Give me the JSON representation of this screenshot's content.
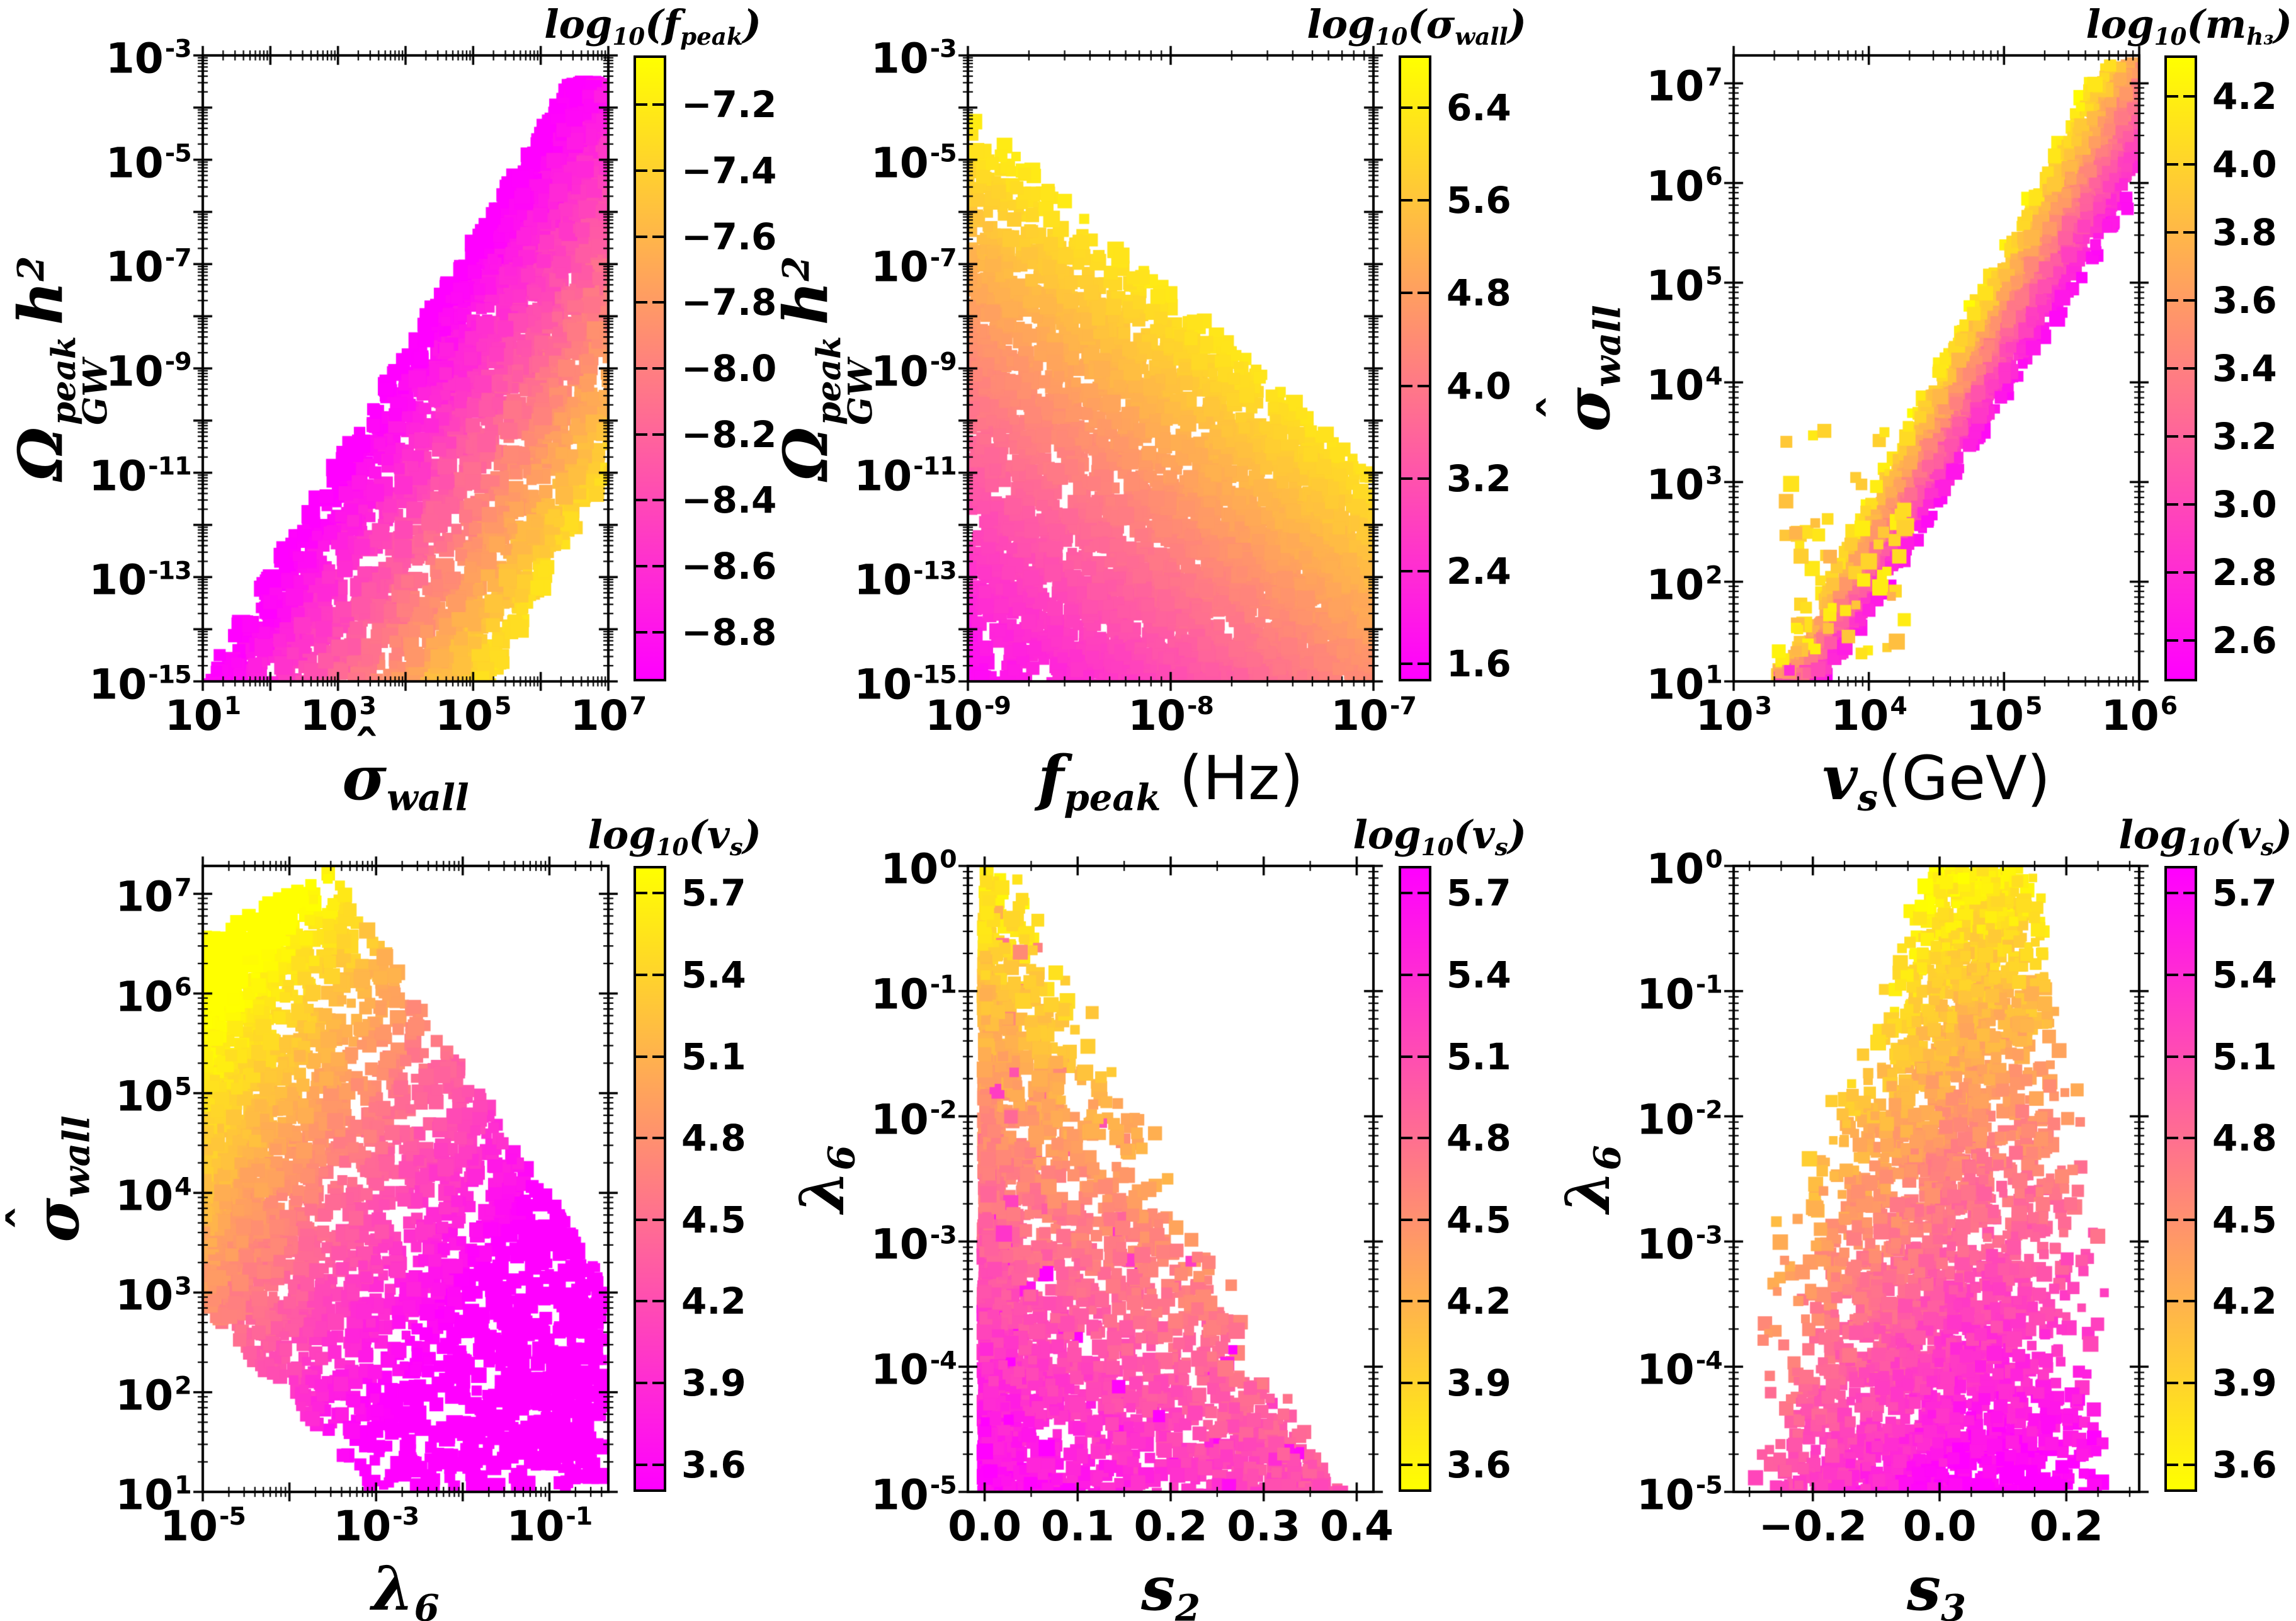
{
  "figure": {
    "background": "#ffffff",
    "text_color": "#000000",
    "colormap": {
      "low_end": "#ff00ff",
      "high_end": "#ffff00",
      "name": "magenta-to-yellow linear (spring-like)"
    }
  },
  "chart_data": {
    "type": "scatter",
    "layout": "2 rows x 3 columns of colored square-marker scatter plots, each with a vertical colorbar",
    "plots": [
      {
        "id": "omega-gw-vs-sigma-wall",
        "trend": "Diagonal band rising from bottom-left to top-right; magenta along upper-left edge, yellow along lower-right edge",
        "xscale": "log",
        "yscale": "log",
        "xrange": [
          1,
          7
        ],
        "yrange": [
          -15,
          -3
        ],
        "xticks": [
          {
            "v": 1,
            "base": "10",
            "exp": "1"
          },
          {
            "v": 3,
            "base": "10",
            "exp": "3"
          },
          {
            "v": 5,
            "base": "10",
            "exp": "5"
          },
          {
            "v": 7,
            "base": "10",
            "exp": "7"
          }
        ],
        "yticks": [
          {
            "v": -3,
            "base": "10",
            "exp": "-3"
          },
          {
            "v": -5,
            "base": "10",
            "exp": "-5"
          },
          {
            "v": -7,
            "base": "10",
            "exp": "-7"
          },
          {
            "v": -9,
            "base": "10",
            "exp": "-9"
          },
          {
            "v": -11,
            "base": "10",
            "exp": "-11"
          },
          {
            "v": -13,
            "base": "10",
            "exp": "-13"
          },
          {
            "v": -15,
            "base": "10",
            "exp": "-15"
          }
        ],
        "xlabel": [
          {
            "text": "σ",
            "hat": true,
            "sub": "wall"
          }
        ],
        "ylabel": [
          {
            "text": "Ω",
            "stack": {
              "sup": "peak",
              "sub": "GW"
            }
          },
          {
            "gap": 0.18
          },
          {
            "text": "h",
            "sup": "2"
          }
        ],
        "colorbar": {
          "title": [
            {
              "text": "log",
              "sub": "10"
            },
            {
              "text": "("
            },
            {
              "text": "f",
              "sub": "peak"
            },
            {
              "text": ")"
            }
          ],
          "vmin": -8.95,
          "vmax": -7.05,
          "high_color": "yellow",
          "ticks": [
            {
              "v": -7.2,
              "t": "−7.2"
            },
            {
              "v": -7.4,
              "t": "−7.4"
            },
            {
              "v": -7.6,
              "t": "−7.6"
            },
            {
              "v": -7.8,
              "t": "−7.8"
            },
            {
              "v": -8.0,
              "t": "−8.0"
            },
            {
              "v": -8.2,
              "t": "−8.2"
            },
            {
              "v": -8.4,
              "t": "−8.4"
            },
            {
              "v": -8.6,
              "t": "−8.6"
            },
            {
              "v": -8.8,
              "t": "−8.8"
            }
          ]
        },
        "points_model": {
          "name": "diag_band",
          "count": 2700,
          "seed": 11,
          "slope": 2.1,
          "right_base": 5.3,
          "right_slope": 0.43,
          "c0": -9.03,
          "c_per_d": 0.42,
          "noise": 0.14,
          "size": [
            15,
            30
          ]
        }
      },
      {
        "id": "omega-gw-vs-fpeak",
        "trend": "Region filled below a boundary falling from upper-left to lower-right; magenta at bottom-left grading to yellow toward upper-right boundary",
        "xscale": "log",
        "yscale": "log",
        "xrange": [
          -9,
          -7
        ],
        "yrange": [
          -15,
          -3
        ],
        "xticks": [
          {
            "v": -9,
            "base": "10",
            "exp": "-9"
          },
          {
            "v": -8,
            "base": "10",
            "exp": "-8"
          },
          {
            "v": -7,
            "base": "10",
            "exp": "-7"
          }
        ],
        "yticks": [
          {
            "v": -3,
            "base": "10",
            "exp": "-3"
          },
          {
            "v": -5,
            "base": "10",
            "exp": "-5"
          },
          {
            "v": -7,
            "base": "10",
            "exp": "-7"
          },
          {
            "v": -9,
            "base": "10",
            "exp": "-9"
          },
          {
            "v": -11,
            "base": "10",
            "exp": "-11"
          },
          {
            "v": -13,
            "base": "10",
            "exp": "-13"
          },
          {
            "v": -15,
            "base": "10",
            "exp": "-15"
          }
        ],
        "xlabel": [
          {
            "text": "f",
            "sub": "peak"
          },
          {
            "gap": 0.3
          },
          {
            "text": "(Hz)",
            "roman": true
          }
        ],
        "ylabel": [
          {
            "text": "Ω",
            "stack": {
              "sup": "peak",
              "sub": "GW"
            }
          },
          {
            "gap": 0.18
          },
          {
            "text": "h",
            "sup": "2"
          }
        ],
        "colorbar": {
          "title": [
            {
              "text": "log",
              "sub": "10"
            },
            {
              "text": "("
            },
            {
              "text": "σ",
              "hat": true,
              "sub": "wall"
            },
            {
              "text": ")"
            }
          ],
          "vmin": 1.45,
          "vmax": 6.85,
          "high_color": "yellow",
          "ticks": [
            {
              "v": 6.4,
              "t": "6.4"
            },
            {
              "v": 5.6,
              "t": "5.6"
            },
            {
              "v": 4.8,
              "t": "4.8"
            },
            {
              "v": 4.0,
              "t": "4.0"
            },
            {
              "v": 3.2,
              "t": "3.2"
            },
            {
              "v": 2.4,
              "t": "2.4"
            },
            {
              "v": 1.6,
              "t": "1.6"
            }
          ]
        },
        "points_model": {
          "name": "upper_fill",
          "count": 3300,
          "seed": 22,
          "top_left": -4.0,
          "top_slope": -3.5,
          "c": [
            1.5,
            5.3,
            2.9
          ],
          "noise": 0.16,
          "size": [
            15,
            27
          ]
        }
      },
      {
        "id": "sigma-wall-vs-vs",
        "trend": "Narrow band rising steeply from (3e3,1e1) to (1e6,1e7); yellow along upper-left edge of band, magenta along lower-right edge; a few orange outliers left of the band",
        "xscale": "log",
        "yscale": "log",
        "xrange": [
          3,
          6
        ],
        "yrange": [
          1,
          7.28
        ],
        "xticks": [
          {
            "v": 3,
            "base": "10",
            "exp": "3"
          },
          {
            "v": 4,
            "base": "10",
            "exp": "4"
          },
          {
            "v": 5,
            "base": "10",
            "exp": "5"
          },
          {
            "v": 6,
            "base": "10",
            "exp": "6"
          }
        ],
        "yticks": [
          {
            "v": 7,
            "base": "10",
            "exp": "7"
          },
          {
            "v": 6,
            "base": "10",
            "exp": "6"
          },
          {
            "v": 5,
            "base": "10",
            "exp": "5"
          },
          {
            "v": 4,
            "base": "10",
            "exp": "4"
          },
          {
            "v": 3,
            "base": "10",
            "exp": "3"
          },
          {
            "v": 2,
            "base": "10",
            "exp": "2"
          },
          {
            "v": 1,
            "base": "10",
            "exp": "1"
          }
        ],
        "xlabel": [
          {
            "text": "v",
            "sub": "s"
          },
          {
            "text": "(GeV)",
            "roman": true
          }
        ],
        "ylabel": [
          {
            "text": "σ",
            "hat": true,
            "sub": "wall"
          }
        ],
        "colorbar": {
          "title": [
            {
              "text": "log",
              "sub": "10"
            },
            {
              "text": "("
            },
            {
              "text": "m",
              "sub": "h₃"
            },
            {
              "text": ")"
            }
          ],
          "vmin": 2.48,
          "vmax": 4.32,
          "high_color": "yellow",
          "ticks": [
            {
              "v": 4.2,
              "t": "4.2"
            },
            {
              "v": 4.0,
              "t": "4.0"
            },
            {
              "v": 3.8,
              "t": "3.8"
            },
            {
              "v": 3.6,
              "t": "3.6"
            },
            {
              "v": 3.4,
              "t": "3.4"
            },
            {
              "v": 3.2,
              "t": "3.2"
            },
            {
              "v": 3.0,
              "t": "3.0"
            },
            {
              "v": 2.8,
              "t": "2.8"
            },
            {
              "v": 2.6,
              "t": "2.6"
            }
          ]
        },
        "points_model": {
          "name": "rising_band",
          "count": 2400,
          "seed": 33,
          "center_slope": 2.35,
          "spread": [
            0.55,
            0.5
          ],
          "c_lo": 2.48,
          "c_hi": 4.28,
          "outliers": 65,
          "size": [
            14,
            26
          ]
        }
      },
      {
        "id": "sigma-wall-vs-lambda6",
        "trend": "Large cloud dense at upper-left (yellow, up to 1e7) grading to magenta at lower-right; sparse magenta points scattered toward large lambda6",
        "xscale": "log",
        "yscale": "log",
        "xrange": [
          -5,
          -0.32
        ],
        "yrange": [
          1,
          7.28
        ],
        "xticks": [
          {
            "v": -5,
            "base": "10",
            "exp": "-5"
          },
          {
            "v": -3,
            "base": "10",
            "exp": "-3"
          },
          {
            "v": -1,
            "base": "10",
            "exp": "-1"
          }
        ],
        "yticks": [
          {
            "v": 7,
            "base": "10",
            "exp": "7"
          },
          {
            "v": 6,
            "base": "10",
            "exp": "6"
          },
          {
            "v": 5,
            "base": "10",
            "exp": "5"
          },
          {
            "v": 4,
            "base": "10",
            "exp": "4"
          },
          {
            "v": 3,
            "base": "10",
            "exp": "3"
          },
          {
            "v": 2,
            "base": "10",
            "exp": "2"
          },
          {
            "v": 1,
            "base": "10",
            "exp": "1"
          }
        ],
        "xlabel": [
          {
            "text": "λ",
            "sub": "6"
          }
        ],
        "ylabel": [
          {
            "text": "σ",
            "hat": true,
            "sub": "wall"
          }
        ],
        "colorbar": {
          "title": [
            {
              "text": "log",
              "sub": "10"
            },
            {
              "text": "("
            },
            {
              "text": "v",
              "sub": "s"
            },
            {
              "text": ")"
            }
          ],
          "vmin": 3.5,
          "vmax": 5.8,
          "high_color": "yellow",
          "ticks": [
            {
              "v": 5.7,
              "t": "5.7"
            },
            {
              "v": 5.4,
              "t": "5.4"
            },
            {
              "v": 5.1,
              "t": "5.1"
            },
            {
              "v": 4.8,
              "t": "4.8"
            },
            {
              "v": 4.5,
              "t": "4.5"
            },
            {
              "v": 4.2,
              "t": "4.2"
            },
            {
              "v": 3.9,
              "t": "3.9"
            },
            {
              "v": 3.6,
              "t": "3.6"
            }
          ]
        },
        "points_model": {
          "name": "blob",
          "count": 3000,
          "seed": 44,
          "size": [
            14,
            27
          ]
        }
      },
      {
        "id": "lambda6-vs-s2",
        "trend": "Dense column at s2 near 0 spanning all lambda6; spreads right at low lambda6; yellow at top grading through orange to magenta at bottom-left",
        "xscale": "linear",
        "yscale": "log",
        "xrange": [
          -0.018,
          0.418
        ],
        "yrange": [
          -5,
          0
        ],
        "xticks": [
          {
            "v": 0.0,
            "t": "0.0"
          },
          {
            "v": 0.1,
            "t": "0.1"
          },
          {
            "v": 0.2,
            "t": "0.2"
          },
          {
            "v": 0.3,
            "t": "0.3"
          },
          {
            "v": 0.4,
            "t": "0.4"
          }
        ],
        "yticks": [
          {
            "v": 0,
            "base": "10",
            "exp": "0"
          },
          {
            "v": -1,
            "base": "10",
            "exp": "-1"
          },
          {
            "v": -2,
            "base": "10",
            "exp": "-2"
          },
          {
            "v": -3,
            "base": "10",
            "exp": "-3"
          },
          {
            "v": -4,
            "base": "10",
            "exp": "-4"
          },
          {
            "v": -5,
            "base": "10",
            "exp": "-5"
          }
        ],
        "xlabel": [
          {
            "text": "s",
            "sub": "2"
          }
        ],
        "ylabel": [
          {
            "text": "λ",
            "sub": "6"
          }
        ],
        "colorbar": {
          "title": [
            {
              "text": "log",
              "sub": "10"
            },
            {
              "text": "("
            },
            {
              "text": "v",
              "sub": "s"
            },
            {
              "text": ")"
            }
          ],
          "vmin": 3.5,
          "vmax": 5.8,
          "high_color": "magenta",
          "ticks": [
            {
              "v": 5.7,
              "t": "5.7"
            },
            {
              "v": 5.4,
              "t": "5.4"
            },
            {
              "v": 5.1,
              "t": "5.1"
            },
            {
              "v": 4.8,
              "t": "4.8"
            },
            {
              "v": 4.5,
              "t": "4.5"
            },
            {
              "v": 4.2,
              "t": "4.2"
            },
            {
              "v": 3.9,
              "t": "3.9"
            },
            {
              "v": 3.6,
              "t": "3.6"
            }
          ]
        },
        "points_model": {
          "name": "left_column",
          "count": 2500,
          "seed": 55,
          "size": [
            14,
            26
          ]
        }
      },
      {
        "id": "lambda6-vs-s3",
        "trend": "Broad fan centered near s3=0.05, widest at bottom; yellow/orange at top and left edges, dense magenta in lower center-right",
        "xscale": "linear",
        "yscale": "log",
        "xrange": [
          -0.325,
          0.315
        ],
        "yrange": [
          -5,
          0
        ],
        "xticks": [
          {
            "v": -0.2,
            "t": "−0.2"
          },
          {
            "v": 0.0,
            "t": "0.0"
          },
          {
            "v": 0.2,
            "t": "0.2"
          }
        ],
        "yticks": [
          {
            "v": 0,
            "base": "10",
            "exp": "0"
          },
          {
            "v": -1,
            "base": "10",
            "exp": "-1"
          },
          {
            "v": -2,
            "base": "10",
            "exp": "-2"
          },
          {
            "v": -3,
            "base": "10",
            "exp": "-3"
          },
          {
            "v": -4,
            "base": "10",
            "exp": "-4"
          },
          {
            "v": -5,
            "base": "10",
            "exp": "-5"
          }
        ],
        "xlabel": [
          {
            "text": "s",
            "sub": "3"
          }
        ],
        "ylabel": [
          {
            "text": "λ",
            "sub": "6"
          }
        ],
        "colorbar": {
          "title": [
            {
              "text": "log",
              "sub": "10"
            },
            {
              "text": "("
            },
            {
              "text": "v",
              "sub": "s"
            },
            {
              "text": ")"
            }
          ],
          "vmin": 3.5,
          "vmax": 5.8,
          "high_color": "magenta",
          "ticks": [
            {
              "v": 5.7,
              "t": "5.7"
            },
            {
              "v": 5.4,
              "t": "5.4"
            },
            {
              "v": 5.1,
              "t": "5.1"
            },
            {
              "v": 4.8,
              "t": "4.8"
            },
            {
              "v": 4.5,
              "t": "4.5"
            },
            {
              "v": 4.2,
              "t": "4.2"
            },
            {
              "v": 3.9,
              "t": "3.9"
            },
            {
              "v": 3.6,
              "t": "3.6"
            }
          ]
        },
        "points_model": {
          "name": "center_fan",
          "count": 2900,
          "seed": 66,
          "size": [
            13,
            25
          ]
        }
      }
    ]
  }
}
